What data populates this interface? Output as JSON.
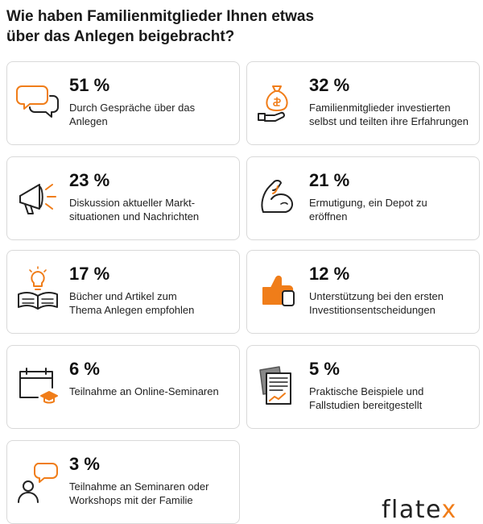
{
  "title": {
    "line1": "Wie haben Familienmitglieder Ihnen etwas",
    "line2": "über das Anlegen beigebracht?"
  },
  "colors": {
    "accent": "#f07d19",
    "text": "#1a1a1a",
    "border": "#d9d9d9"
  },
  "cards": [
    {
      "icon": "speech-bubbles-icon",
      "percent": "51 %",
      "lines": [
        "Durch Gespräche über das",
        "Anlegen"
      ]
    },
    {
      "icon": "money-bag-hand-icon",
      "percent": "32 %",
      "lines": [
        "Familienmitglieder investierten",
        "selbst und teilten ihre Erfahrungen"
      ]
    },
    {
      "icon": "megaphone-icon",
      "percent": "23 %",
      "lines": [
        "Diskussion aktueller Markt-",
        "situationen und Nachrichten"
      ]
    },
    {
      "icon": "flexed-arm-icon",
      "percent": "21 %",
      "lines": [
        "Ermutigung, ein Depot zu",
        "eröffnen"
      ]
    },
    {
      "icon": "book-lightbulb-icon",
      "percent": "17 %",
      "lines": [
        "Bücher und Artikel zum",
        "Thema Anlegen empfohlen"
      ]
    },
    {
      "icon": "thumbs-up-icon",
      "percent": "12 %",
      "lines": [
        "Unterstützung bei den ersten",
        "Investitionsentscheidungen"
      ]
    },
    {
      "icon": "calendar-graduation-icon",
      "percent": "6 %",
      "lines": [
        "Teilnahme an Online-Seminaren"
      ]
    },
    {
      "icon": "documents-chart-icon",
      "percent": "5 %",
      "lines": [
        "Praktische Beispiele und",
        "Fallstudien bereitgestellt"
      ]
    },
    {
      "icon": "person-speech-icon",
      "percent": "3 %",
      "lines": [
        "Teilnahme an Seminaren oder",
        "Workshops mit der Familie"
      ]
    }
  ],
  "logo": {
    "text_main": "flate",
    "text_accent": "x"
  }
}
